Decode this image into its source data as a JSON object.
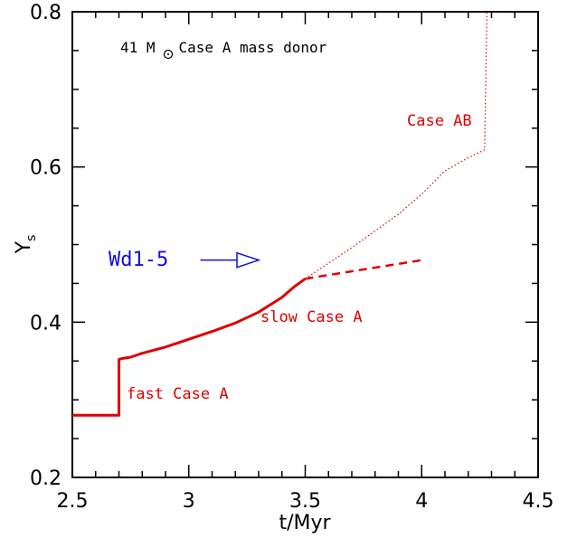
{
  "chart_data": {
    "type": "line",
    "title": "",
    "xlabel": "t/Myr",
    "ylabel": "Y",
    "ylabel_sub": "s",
    "xlim": [
      2.5,
      4.5
    ],
    "ylim": [
      0.2,
      0.8
    ],
    "x_ticks": [
      2.5,
      3,
      3.5,
      4,
      4.5
    ],
    "x_tick_labels": [
      "2.5",
      "3",
      "3.5",
      "4",
      "4.5"
    ],
    "y_ticks": [
      0.2,
      0.4,
      0.6,
      0.8
    ],
    "y_tick_labels": [
      "0.2",
      "0.4",
      "0.6",
      "0.8"
    ],
    "grid": false,
    "series": [
      {
        "style": "solid",
        "color": "#e00000",
        "points": [
          [
            2.5,
            0.28
          ],
          [
            2.7,
            0.28
          ],
          [
            2.7,
            0.352
          ],
          [
            2.71,
            0.353
          ],
          [
            2.75,
            0.355
          ],
          [
            2.8,
            0.36
          ],
          [
            2.9,
            0.368
          ],
          [
            3.0,
            0.378
          ],
          [
            3.1,
            0.388
          ],
          [
            3.2,
            0.399
          ],
          [
            3.3,
            0.413
          ],
          [
            3.4,
            0.432
          ],
          [
            3.45,
            0.445
          ],
          [
            3.5,
            0.456
          ]
        ]
      },
      {
        "style": "dashed",
        "color": "#e00000",
        "points": [
          [
            3.5,
            0.456
          ],
          [
            4.0,
            0.48
          ]
        ]
      },
      {
        "style": "dotted",
        "color": "#e00000",
        "points": [
          [
            3.5,
            0.456
          ],
          [
            3.7,
            0.496
          ],
          [
            3.9,
            0.539
          ],
          [
            4.0,
            0.565
          ],
          [
            4.1,
            0.595
          ],
          [
            4.2,
            0.612
          ],
          [
            4.27,
            0.622
          ],
          [
            4.28,
            0.8
          ]
        ]
      }
    ],
    "annotations": {
      "title_prefix": "41 M",
      "title_suffix": "Case A mass donor",
      "case_ab": "Case AB",
      "slow_case_a": "slow Case A",
      "fast_case_a": "fast Case A",
      "wd1_5": "Wd1-5"
    },
    "arrow": {
      "from": [
        3.05,
        0.48
      ],
      "to": [
        3.3,
        0.48
      ],
      "color": "#1010e0"
    }
  }
}
